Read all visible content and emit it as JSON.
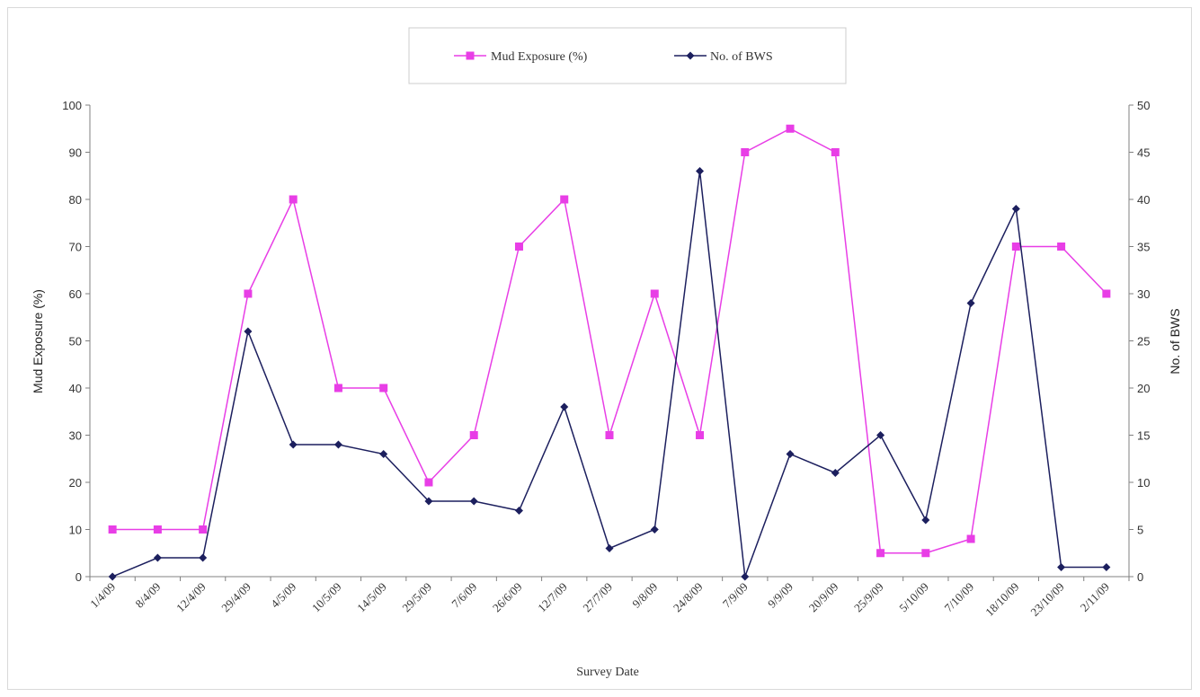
{
  "chart_data": {
    "type": "line",
    "xlabel": "Survey Date",
    "ylabel_left": "Mud Exposure (%)",
    "ylabel_right": "No. of BWS",
    "ylim_left": [
      0,
      100
    ],
    "ylim_right": [
      0,
      50
    ],
    "yticks_left": [
      0,
      10,
      20,
      30,
      40,
      50,
      60,
      70,
      80,
      90,
      100
    ],
    "yticks_right": [
      0,
      5,
      10,
      15,
      20,
      25,
      30,
      35,
      40,
      45,
      50
    ],
    "grid": false,
    "legend_position": "top-center",
    "x": [
      "1/4/09",
      "8/4/09",
      "12/4/09",
      "29/4/09",
      "4/5/09",
      "10/5/09",
      "14/5/09",
      "29/5/09",
      "7/6/09",
      "26/6/09",
      "12/7/09",
      "27/7/09",
      "9/8/09",
      "24/8/09",
      "7/9/09",
      "9/9/09",
      "20/9/09",
      "25/9/09",
      "5/10/09",
      "7/10/09",
      "18/10/09",
      "23/10/09",
      "2/11/09"
    ],
    "series": [
      {
        "name": "Mud Exposure (%)",
        "axis": "left",
        "color": "#e83ee6",
        "marker": "square",
        "values": [
          10,
          10,
          10,
          60,
          80,
          40,
          40,
          20,
          30,
          70,
          80,
          30,
          60,
          30,
          90,
          95,
          90,
          5,
          5,
          8,
          70,
          70,
          60
        ]
      },
      {
        "name": "No. of BWS",
        "axis": "right",
        "color": "#1c1f5e",
        "marker": "diamond",
        "values": [
          0,
          2,
          2,
          26,
          14,
          14,
          13,
          8,
          8,
          7,
          18,
          3,
          5,
          43,
          0,
          13,
          11,
          15,
          6,
          29,
          39,
          1,
          1
        ]
      }
    ]
  }
}
